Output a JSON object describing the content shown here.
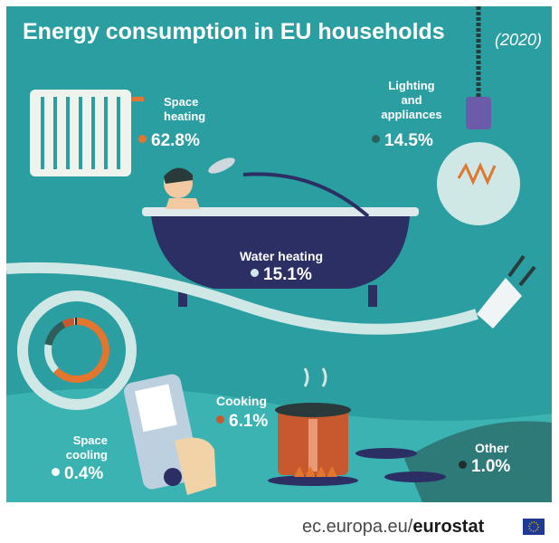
{
  "header": {
    "title": "Energy consumption in EU households",
    "year": "(2020)"
  },
  "chart_data": {
    "type": "pie",
    "title": "Energy consumption in EU households",
    "subtitle": "(2020)",
    "categories": [
      "Space heating",
      "Water heating",
      "Lighting and appliances",
      "Cooking",
      "Space cooling",
      "Other"
    ],
    "values": [
      62.8,
      15.1,
      14.5,
      6.1,
      0.4,
      1.0
    ],
    "labels": [
      "62.8%",
      "15.1%",
      "14.5%",
      "6.1%",
      "0.4%",
      "1.0%"
    ],
    "colors": [
      "#e2762f",
      "#cfe8e6",
      "#2d5e5a",
      "#c65a2e",
      "#ffffff",
      "#1e2f2d"
    ]
  },
  "labels": {
    "space_heating": [
      "Space",
      "heating"
    ],
    "lighting": [
      "Lighting",
      "and",
      "appliances"
    ],
    "water_heating": "Water heating",
    "cooking": "Cooking",
    "space_cooling": [
      "Space",
      "cooling"
    ],
    "other": "Other"
  },
  "footer": {
    "source": "ec.europa.eu/",
    "brand": "eurostat"
  },
  "colors": {
    "background": "#2a9ea0",
    "accent": "#e2762f",
    "tub": "#2b2f63",
    "pot": "#c65a2e"
  }
}
